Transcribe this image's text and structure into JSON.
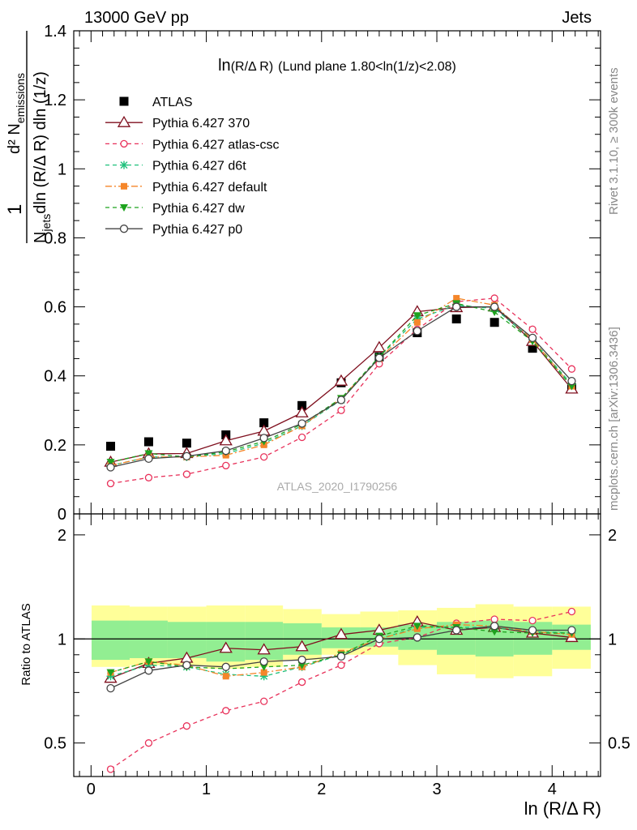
{
  "header": {
    "left": "13000 GeV pp",
    "right": "Jets"
  },
  "side_labels": {
    "rivet": "Rivet 3.1.10, ≥ 300k events",
    "mcplots": "mcplots.cern.ch [arXiv:1306.3436]"
  },
  "analysis_id": "ATLAS_2020_I1790256",
  "plot_title": {
    "main": "ln",
    "paren": "(R/Δ R)",
    "rest": "(Lund plane 1.80<ln(1/z)<2.08)"
  },
  "axis": {
    "x_label": "ln (R/Δ R)",
    "y_label_one": "1",
    "y_label_num": "d² N",
    "y_label_num_sub": "emissions",
    "y_label_den": "N",
    "y_label_den_sub": "jets",
    "y_label_den_rest": "dln (R/Δ R) dln (1/z)",
    "ratio_label": "Ratio to ATLAS"
  },
  "colors": {
    "atlas": "#000000",
    "p370": "#7f0f1e",
    "atlascsc": "#e8315a",
    "d6t": "#1fc17c",
    "default": "#f5862a",
    "dw": "#1ea31e",
    "p0": "#444444",
    "band_inner": "#92ee92",
    "band_outer": "#ffff99"
  },
  "chart_data": {
    "type": "line",
    "x": [
      0.17,
      0.5,
      0.83,
      1.17,
      1.5,
      1.83,
      2.17,
      2.5,
      2.83,
      3.17,
      3.5,
      3.83,
      4.17
    ],
    "xlim": [
      -0.15,
      4.42
    ],
    "ylim": [
      0,
      1.4
    ],
    "ratio_ylim": [
      0.4,
      2.3
    ],
    "x_ticks": [
      0,
      1,
      2,
      3,
      4
    ],
    "y_ticks": [
      0,
      0.2,
      0.4,
      0.6,
      0.8,
      1,
      1.2,
      1.4
    ],
    "ratio_ticks": [
      0.5,
      1,
      2
    ],
    "legend_position": "top-left",
    "series": [
      {
        "name": "ATLAS",
        "key": "atlas",
        "values": [
          0.196,
          0.209,
          0.205,
          0.229,
          0.264,
          0.314,
          0.38,
          0.455,
          0.525,
          0.565,
          0.555,
          0.48,
          0.365
        ]
      },
      {
        "name": "Pythia 6.427 370",
        "key": "p370",
        "values": [
          0.15,
          0.174,
          0.175,
          0.212,
          0.24,
          0.293,
          0.385,
          0.482,
          0.586,
          0.598,
          0.6,
          0.5,
          0.362
        ],
        "ratio": [
          0.77,
          0.85,
          0.88,
          0.94,
          0.93,
          0.95,
          1.03,
          1.06,
          1.12,
          1.06,
          1.08,
          1.04,
          1.01
        ]
      },
      {
        "name": "Pythia 6.427 atlas-csc",
        "key": "atlascsc",
        "values": [
          0.088,
          0.105,
          0.115,
          0.14,
          0.165,
          0.222,
          0.3,
          0.435,
          0.535,
          0.615,
          0.625,
          0.535,
          0.42
        ],
        "ratio": [
          0.42,
          0.5,
          0.56,
          0.62,
          0.66,
          0.75,
          0.84,
          0.97,
          1.01,
          1.11,
          1.14,
          1.13,
          1.2
        ]
      },
      {
        "name": "Pythia 6.427 d6t",
        "key": "d6t",
        "values": [
          0.14,
          0.165,
          0.165,
          0.175,
          0.205,
          0.255,
          0.33,
          0.455,
          0.565,
          0.605,
          0.595,
          0.505,
          0.375
        ],
        "ratio": [
          0.78,
          0.84,
          0.83,
          0.79,
          0.78,
          0.83,
          0.9,
          1.0,
          1.08,
          1.08,
          1.08,
          1.05,
          1.04
        ]
      },
      {
        "name": "Pythia 6.427 default",
        "key": "default",
        "values": [
          0.14,
          0.165,
          0.165,
          0.17,
          0.2,
          0.255,
          0.335,
          0.45,
          0.555,
          0.625,
          0.605,
          0.505,
          0.37
        ],
        "ratio": [
          0.8,
          0.86,
          0.84,
          0.78,
          0.8,
          0.83,
          0.91,
          1.0,
          1.07,
          1.1,
          1.09,
          1.05,
          1.03
        ]
      },
      {
        "name": "Pythia 6.427 dw",
        "key": "dw",
        "values": [
          0.15,
          0.175,
          0.165,
          0.18,
          0.21,
          0.26,
          0.335,
          0.455,
          0.575,
          0.61,
          0.585,
          0.5,
          0.37
        ],
        "ratio": [
          0.8,
          0.86,
          0.83,
          0.82,
          0.83,
          0.84,
          0.9,
          1.02,
          1.09,
          1.08,
          1.05,
          1.04,
          1.04
        ]
      },
      {
        "name": "Pythia 6.427 p0",
        "key": "p0",
        "values": [
          0.135,
          0.16,
          0.167,
          0.183,
          0.22,
          0.262,
          0.33,
          0.452,
          0.53,
          0.6,
          0.6,
          0.51,
          0.385
        ],
        "ratio": [
          0.72,
          0.81,
          0.84,
          0.83,
          0.86,
          0.87,
          0.89,
          1.0,
          1.01,
          1.06,
          1.09,
          1.06,
          1.06
        ]
      }
    ],
    "ratio_band_inner": [
      [
        0.87,
        1.13
      ],
      [
        0.88,
        1.13
      ],
      [
        0.88,
        1.12
      ],
      [
        0.86,
        1.12
      ],
      [
        0.87,
        1.12
      ],
      [
        0.9,
        1.11
      ],
      [
        0.94,
        1.08
      ],
      [
        0.95,
        1.08
      ],
      [
        0.93,
        1.1
      ],
      [
        0.9,
        1.12
      ],
      [
        0.89,
        1.13
      ],
      [
        0.9,
        1.12
      ],
      [
        0.93,
        1.1
      ]
    ],
    "ratio_band_outer": [
      [
        0.83,
        1.25
      ],
      [
        0.84,
        1.24
      ],
      [
        0.84,
        1.24
      ],
      [
        0.82,
        1.25
      ],
      [
        0.83,
        1.25
      ],
      [
        0.87,
        1.22
      ],
      [
        0.9,
        1.18
      ],
      [
        0.9,
        1.2
      ],
      [
        0.84,
        1.21
      ],
      [
        0.79,
        1.23
      ],
      [
        0.77,
        1.26
      ],
      [
        0.78,
        1.24
      ],
      [
        0.82,
        1.24
      ]
    ]
  }
}
